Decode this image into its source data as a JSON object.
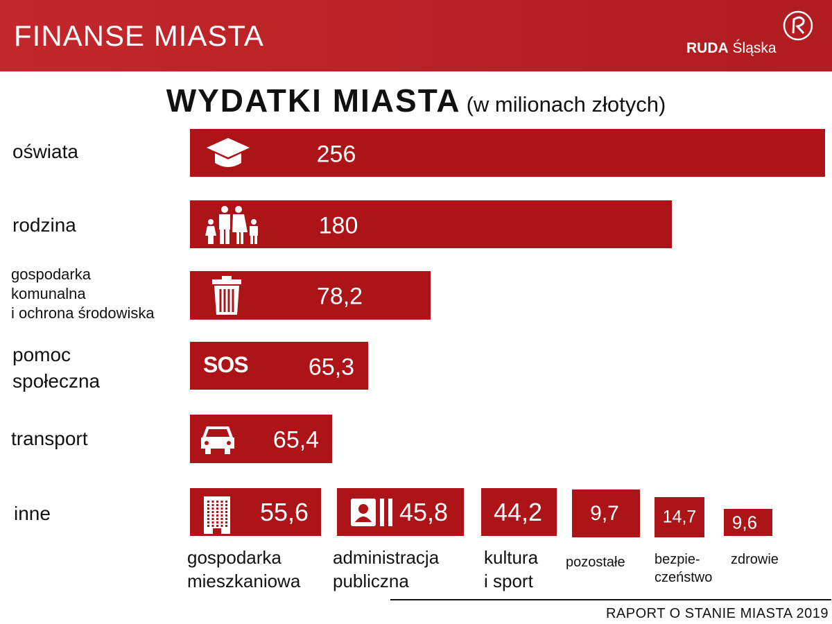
{
  "header": {
    "title": "FINANSE MIASTA",
    "logo_bold": "RUDA",
    "logo_regular": "Śląska"
  },
  "title": {
    "main": "WYDATKI MIASTA",
    "unit": "(w milionach złotych)"
  },
  "colors": {
    "bar": "#ad1417",
    "header": "#c2272b"
  },
  "chart_data": {
    "type": "bar",
    "title": "WYDATKI MIASTA",
    "unit": "(w milionach złotych)",
    "categories": [
      "oświata",
      "rodzina",
      "gospodarka komunalna i ochrona środowiska",
      "pomoc społeczna",
      "transport"
    ],
    "values": [
      256,
      180,
      78.2,
      65.3,
      65.4
    ],
    "labels": [
      "256",
      "180",
      "78,2",
      "65,3",
      "65,4"
    ],
    "icons": [
      "graduation-cap-icon",
      "family-icon",
      "trash-bin-icon",
      "sos-icon",
      "car-icon"
    ],
    "other": {
      "label": "inne",
      "categories": [
        "gospodarka mieszkaniowa",
        "administracja publiczna",
        "kultura i sport",
        "pozostałe",
        "bezpieczeństwo",
        "zdrowie"
      ],
      "values": [
        55.6,
        45.8,
        44.2,
        9.7,
        14.7,
        9.6
      ],
      "labels": [
        "55,6",
        "45,8",
        "44,2",
        "9,7",
        "14,7",
        "9,6"
      ]
    }
  },
  "rows": [
    {
      "label_lines": [
        "oświata"
      ],
      "value": "256",
      "icon_text": ""
    },
    {
      "label_lines": [
        "rodzina"
      ],
      "value": "180",
      "icon_text": ""
    },
    {
      "label_lines": [
        "gospodarka",
        "komunalna",
        "i ochrona środowiska"
      ],
      "value": "78,2",
      "icon_text": ""
    },
    {
      "label_lines": [
        "pomoc",
        "społeczna"
      ],
      "value": "65,3",
      "icon_text": "SOS"
    },
    {
      "label_lines": [
        "transport"
      ],
      "value": "65,4",
      "icon_text": ""
    }
  ],
  "inne": {
    "label": "inne",
    "items": [
      {
        "value": "55,6",
        "label_lines": [
          "gospodarka",
          "mieszkaniowa"
        ]
      },
      {
        "value": "45,8",
        "label_lines": [
          "administracja",
          "publiczna"
        ]
      },
      {
        "value": "44,2",
        "label_lines": [
          "kultura",
          "i sport"
        ]
      },
      {
        "value": "9,7",
        "label_lines": [
          "pozostałe"
        ]
      },
      {
        "value": "14,7",
        "label_lines": [
          "bezpie-",
          "czeństwo"
        ]
      },
      {
        "value": "9,6",
        "label_lines": [
          "zdrowie"
        ]
      }
    ]
  },
  "footer": "RAPORT O STANIE MIASTA 2019"
}
